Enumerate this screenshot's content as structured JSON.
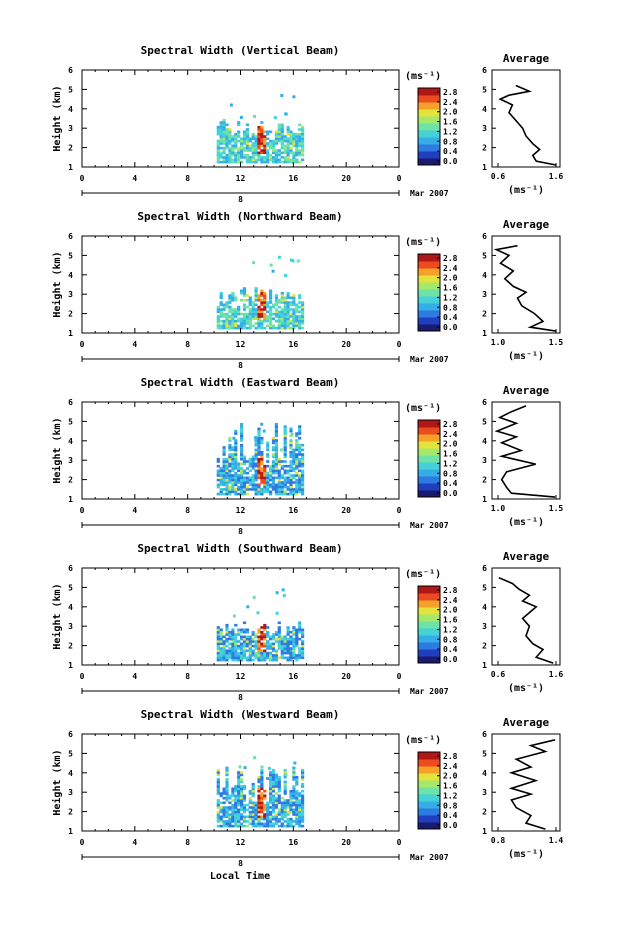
{
  "chart_data": {
    "type": "heatmap",
    "colorbar_unit": "(ms⁻¹)",
    "colorbar_ticks": [
      "0.0",
      "0.4",
      "0.8",
      "1.2",
      "1.6",
      "2.0",
      "2.4",
      "2.8"
    ],
    "time_ticks": [
      "0",
      "4",
      "8",
      "12",
      "16",
      "20",
      "0"
    ],
    "date_day": "8",
    "date_label": "Mar 2007",
    "xlabel": "Local Time",
    "ylabel": "Height (km)",
    "height_ticks": [
      "1",
      "2",
      "3",
      "4",
      "5",
      "6"
    ],
    "avg_title": "Average",
    "avg_unit": "(ms⁻¹)",
    "palette": [
      "#1a1a6e",
      "#1f3fbf",
      "#2d7ae0",
      "#35aee8",
      "#44d2d8",
      "#6ee3a8",
      "#a6e86a",
      "#e4e23c",
      "#f4a12a",
      "#ec4b1f",
      "#b01818"
    ],
    "panels": [
      {
        "title": "Spectral Width (Vertical Beam)",
        "avg_ticks": [
          "0.6",
          "1.6"
        ],
        "avg_min": 0.6,
        "avg_max": 1.6,
        "avg_profile": [
          [
            1.1,
            1.55
          ],
          [
            1.3,
            1.25
          ],
          [
            1.6,
            1.2
          ],
          [
            1.9,
            1.3
          ],
          [
            2.2,
            1.2
          ],
          [
            2.6,
            1.1
          ],
          [
            3.0,
            1.05
          ],
          [
            3.4,
            0.95
          ],
          [
            3.8,
            0.85
          ],
          [
            4.2,
            0.9
          ],
          [
            4.5,
            0.72
          ],
          [
            4.7,
            0.85
          ],
          [
            4.9,
            1.15
          ],
          [
            5.2,
            0.95
          ]
        ]
      },
      {
        "title": "Spectral Width (Northward Beam)",
        "avg_ticks": [
          "1.0",
          "1.5"
        ],
        "avg_min": 0.7,
        "avg_max": 1.5,
        "avg_profile": [
          [
            1.1,
            1.45
          ],
          [
            1.3,
            1.15
          ],
          [
            1.6,
            1.3
          ],
          [
            2.0,
            1.2
          ],
          [
            2.4,
            1.05
          ],
          [
            2.8,
            1.0
          ],
          [
            3.1,
            1.1
          ],
          [
            3.4,
            0.95
          ],
          [
            3.8,
            0.85
          ],
          [
            4.2,
            0.95
          ],
          [
            4.6,
            0.8
          ],
          [
            5.0,
            0.9
          ],
          [
            5.3,
            0.75
          ],
          [
            5.5,
            1.0
          ]
        ]
      },
      {
        "title": "Spectral Width (Eastward Beam)",
        "avg_ticks": [
          "1.0",
          "1.5"
        ],
        "avg_min": 0.9,
        "avg_max": 1.6,
        "avg_profile": [
          [
            1.1,
            1.55
          ],
          [
            1.3,
            1.1
          ],
          [
            1.6,
            1.05
          ],
          [
            2.0,
            1.0
          ],
          [
            2.4,
            1.05
          ],
          [
            2.8,
            1.35
          ],
          [
            3.2,
            1.0
          ],
          [
            3.5,
            1.2
          ],
          [
            3.9,
            1.0
          ],
          [
            4.2,
            1.15
          ],
          [
            4.5,
            0.95
          ],
          [
            4.9,
            1.15
          ],
          [
            5.2,
            0.98
          ],
          [
            5.5,
            1.1
          ],
          [
            5.8,
            1.25
          ]
        ]
      },
      {
        "title": "Spectral Width (Southward Beam)",
        "avg_ticks": [
          "0.6",
          "1.6"
        ],
        "avg_min": 0.6,
        "avg_max": 1.6,
        "avg_profile": [
          [
            1.1,
            1.5
          ],
          [
            1.4,
            1.25
          ],
          [
            1.8,
            1.35
          ],
          [
            2.1,
            1.2
          ],
          [
            2.5,
            1.1
          ],
          [
            3.0,
            1.15
          ],
          [
            3.4,
            1.05
          ],
          [
            3.7,
            1.15
          ],
          [
            4.0,
            1.25
          ],
          [
            4.3,
            1.05
          ],
          [
            4.6,
            1.15
          ],
          [
            4.9,
            1.0
          ],
          [
            5.2,
            0.9
          ],
          [
            5.5,
            0.7
          ]
        ]
      },
      {
        "title": "Spectral Width (Westward Beam)",
        "avg_ticks": [
          "0.8",
          "1.4"
        ],
        "avg_min": 0.8,
        "avg_max": 1.5,
        "avg_profile": [
          [
            1.1,
            1.35
          ],
          [
            1.4,
            1.15
          ],
          [
            1.8,
            1.2
          ],
          [
            2.2,
            1.05
          ],
          [
            2.6,
            1.0
          ],
          [
            2.9,
            1.2
          ],
          [
            3.2,
            1.0
          ],
          [
            3.6,
            1.25
          ],
          [
            4.0,
            1.0
          ],
          [
            4.3,
            1.2
          ],
          [
            4.7,
            1.05
          ],
          [
            5.1,
            1.35
          ],
          [
            5.4,
            1.2
          ],
          [
            5.7,
            1.45
          ]
        ]
      }
    ]
  }
}
